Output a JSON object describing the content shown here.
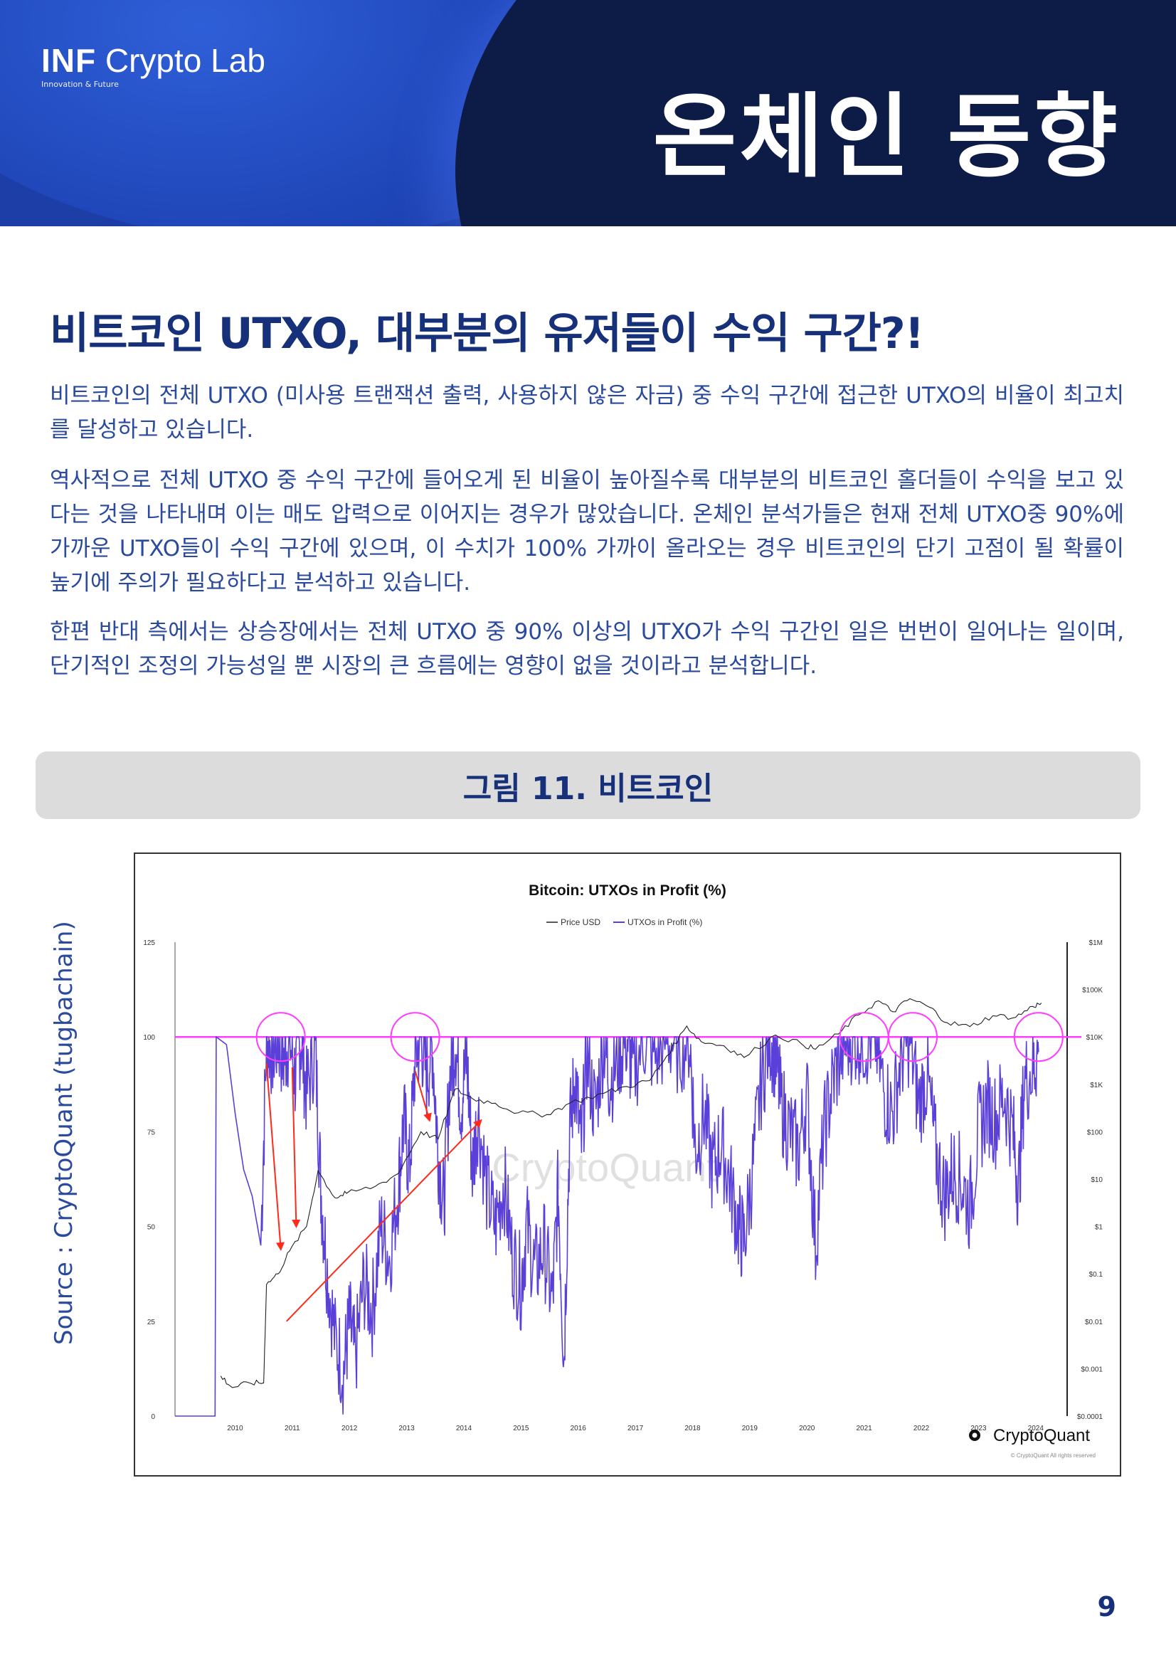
{
  "header": {
    "logo_bold": "INF",
    "logo_rest": "Crypto Lab",
    "logo_tagline": "Innovation & Future",
    "section_title": "온체인 동향"
  },
  "article": {
    "title": "비트코인 UTXO, 대부분의 유저들이 수익 구간?!",
    "paragraphs": [
      "비트코인의 전체 UTXO (미사용 트랜잭션 출력, 사용하지 않은 자금) 중 수익 구간에 접근한 UTXO의 비율이 최고치를 달성하고 있습니다.",
      "역사적으로 전체 UTXO 중 수익 구간에 들어오게 된 비율이 높아질수록 대부분의 비트코인 홀더들이 수익을 보고 있다는 것을 나타내며 이는 매도 압력으로 이어지는 경우가 많았습니다. 온체인 분석가들은 현재 전체 UTXO중 90%에 가까운 UTXO들이 수익 구간에 있으며, 이 수치가 100% 가까이 올라오는 경우 비트코인의 단기 고점이 될 확률이 높기에 주의가 필요하다고 분석하고 있습니다.",
      "한편 반대 측에서는 상승장에서는 전체 UTXO 중 90% 이상의 UTXO가 수익 구간인 일은 번번이 일어나는 일이며, 단기적인 조정의 가능성일 뿐 시장의 큰 흐름에는 영향이 없을 것이라고 분석합니다."
    ]
  },
  "figure": {
    "label": "그림 11. 비트코인",
    "source": "Source : CryptoQuant (tugbachain)"
  },
  "chart_data": {
    "type": "line",
    "title": "Bitcoin: UTXOs in Profit (%)",
    "legend": [
      "Price USD",
      "UTXOs in Profit (%)"
    ],
    "legend_placement": "top-center",
    "x_ticks": [
      "2010",
      "2011",
      "2012",
      "2013",
      "2014",
      "2015",
      "2016",
      "2017",
      "2018",
      "2019",
      "2020",
      "2021",
      "2022",
      "2023",
      "2024"
    ],
    "y_left_ticks": [
      "125",
      "100",
      "75",
      "50",
      "25",
      "0"
    ],
    "y_left_range": [
      0,
      125
    ],
    "y_right_ticks": [
      "$1M",
      "$100K",
      "$10K",
      "$1K",
      "$100",
      "$10",
      "$1",
      "$0.1",
      "$0.01",
      "$0.001",
      "$0.0001"
    ],
    "y_right_scale": "log",
    "reference_line": 100,
    "watermark": "CryptoQuant",
    "brand": "CryptoQuant",
    "copyright": "© CryptoQuant All rights reserved",
    "colors": {
      "profit": "#5a3fd8",
      "price": "#222222",
      "reference": "#ff3cff",
      "annotation": "#ff2a1a"
    },
    "series": [
      {
        "name": "UTXOs in Profit (%)",
        "points": [
          [
            2009.0,
            0
          ],
          [
            2009.7,
            0
          ],
          [
            2009.72,
            100
          ],
          [
            2009.9,
            98
          ],
          [
            2010.05,
            80
          ],
          [
            2010.2,
            65
          ],
          [
            2010.35,
            58
          ],
          [
            2010.5,
            45
          ],
          [
            2010.6,
            100
          ],
          [
            2010.7,
            96
          ],
          [
            2010.8,
            100
          ],
          [
            2010.9,
            94
          ],
          [
            2011.0,
            100
          ],
          [
            2011.1,
            90
          ],
          [
            2011.2,
            100
          ],
          [
            2011.3,
            85
          ],
          [
            2011.45,
            98
          ],
          [
            2011.55,
            60
          ],
          [
            2011.65,
            40
          ],
          [
            2011.8,
            20
          ],
          [
            2011.95,
            12
          ],
          [
            2012.05,
            25
          ],
          [
            2012.15,
            15
          ],
          [
            2012.3,
            35
          ],
          [
            2012.45,
            28
          ],
          [
            2012.6,
            50
          ],
          [
            2012.75,
            42
          ],
          [
            2012.9,
            60
          ],
          [
            2013.0,
            78
          ],
          [
            2013.1,
            65
          ],
          [
            2013.2,
            95
          ],
          [
            2013.3,
            100
          ],
          [
            2013.4,
            90
          ],
          [
            2013.5,
            98
          ],
          [
            2013.6,
            70
          ],
          [
            2013.7,
            55
          ],
          [
            2013.8,
            88
          ],
          [
            2013.9,
            100
          ],
          [
            2014.0,
            82
          ],
          [
            2014.1,
            95
          ],
          [
            2014.2,
            65
          ],
          [
            2014.3,
            80
          ],
          [
            2014.45,
            60
          ],
          [
            2014.6,
            50
          ],
          [
            2014.75,
            62
          ],
          [
            2014.9,
            42
          ],
          [
            2015.05,
            35
          ],
          [
            2015.15,
            50
          ],
          [
            2015.3,
            38
          ],
          [
            2015.45,
            45
          ],
          [
            2015.6,
            30
          ],
          [
            2015.7,
            60
          ],
          [
            2015.8,
            15
          ],
          [
            2015.9,
            75
          ],
          [
            2016.0,
            90
          ],
          [
            2016.1,
            70
          ],
          [
            2016.2,
            95
          ],
          [
            2016.35,
            80
          ],
          [
            2016.5,
            100
          ],
          [
            2016.6,
            88
          ],
          [
            2016.75,
            95
          ],
          [
            2016.9,
            100
          ],
          [
            2017.0,
            90
          ],
          [
            2017.2,
            100
          ],
          [
            2017.4,
            95
          ],
          [
            2017.6,
            100
          ],
          [
            2017.8,
            97
          ],
          [
            2018.0,
            100
          ],
          [
            2018.1,
            70
          ],
          [
            2018.25,
            80
          ],
          [
            2018.4,
            65
          ],
          [
            2018.55,
            72
          ],
          [
            2018.7,
            62
          ],
          [
            2018.85,
            50
          ],
          [
            2018.95,
            46
          ],
          [
            2019.1,
            65
          ],
          [
            2019.25,
            88
          ],
          [
            2019.4,
            100
          ],
          [
            2019.5,
            95
          ],
          [
            2019.6,
            82
          ],
          [
            2019.75,
            75
          ],
          [
            2019.9,
            70
          ],
          [
            2020.05,
            85
          ],
          [
            2020.2,
            45
          ],
          [
            2020.35,
            75
          ],
          [
            2020.5,
            88
          ],
          [
            2020.65,
            96
          ],
          [
            2020.8,
            100
          ],
          [
            2020.95,
            100
          ],
          [
            2021.1,
            99
          ],
          [
            2021.25,
            100
          ],
          [
            2021.4,
            85
          ],
          [
            2021.55,
            80
          ],
          [
            2021.7,
            95
          ],
          [
            2021.85,
            100
          ],
          [
            2022.0,
            82
          ],
          [
            2022.15,
            90
          ],
          [
            2022.3,
            70
          ],
          [
            2022.45,
            58
          ],
          [
            2022.6,
            65
          ],
          [
            2022.75,
            62
          ],
          [
            2022.9,
            55
          ],
          [
            2023.05,
            75
          ],
          [
            2023.2,
            82
          ],
          [
            2023.35,
            78
          ],
          [
            2023.5,
            85
          ],
          [
            2023.65,
            75
          ],
          [
            2023.75,
            60
          ],
          [
            2023.85,
            88
          ],
          [
            2024.0,
            92
          ],
          [
            2024.1,
            96
          ]
        ]
      },
      {
        "name": "Price USD",
        "points": [
          [
            2009.8,
            0.0007
          ],
          [
            2010.0,
            0.0004
          ],
          [
            2010.3,
            0.0005
          ],
          [
            2010.55,
            0.0005
          ],
          [
            2010.6,
            0.06
          ],
          [
            2010.8,
            0.1
          ],
          [
            2011.0,
            0.3
          ],
          [
            2011.3,
            1
          ],
          [
            2011.5,
            15
          ],
          [
            2011.8,
            4
          ],
          [
            2012.0,
            5
          ],
          [
            2012.5,
            7
          ],
          [
            2012.9,
            13
          ],
          [
            2013.3,
            100
          ],
          [
            2013.6,
            70
          ],
          [
            2013.9,
            800
          ],
          [
            2014.2,
            500
          ],
          [
            2014.6,
            400
          ],
          [
            2015.0,
            250
          ],
          [
            2015.5,
            230
          ],
          [
            2015.9,
            400
          ],
          [
            2016.5,
            650
          ],
          [
            2016.9,
            900
          ],
          [
            2017.3,
            1200
          ],
          [
            2017.6,
            4000
          ],
          [
            2017.95,
            17000
          ],
          [
            2018.2,
            8000
          ],
          [
            2018.6,
            6500
          ],
          [
            2018.95,
            3700
          ],
          [
            2019.5,
            11000
          ],
          [
            2019.95,
            7200
          ],
          [
            2020.2,
            5500
          ],
          [
            2020.6,
            11500
          ],
          [
            2020.95,
            29000
          ],
          [
            2021.3,
            58000
          ],
          [
            2021.55,
            34000
          ],
          [
            2021.85,
            64000
          ],
          [
            2022.2,
            42000
          ],
          [
            2022.5,
            20000
          ],
          [
            2022.9,
            16500
          ],
          [
            2023.3,
            28000
          ],
          [
            2023.7,
            26000
          ],
          [
            2024.0,
            44000
          ],
          [
            2024.15,
            52000
          ]
        ]
      }
    ]
  },
  "page": {
    "number": "9"
  }
}
